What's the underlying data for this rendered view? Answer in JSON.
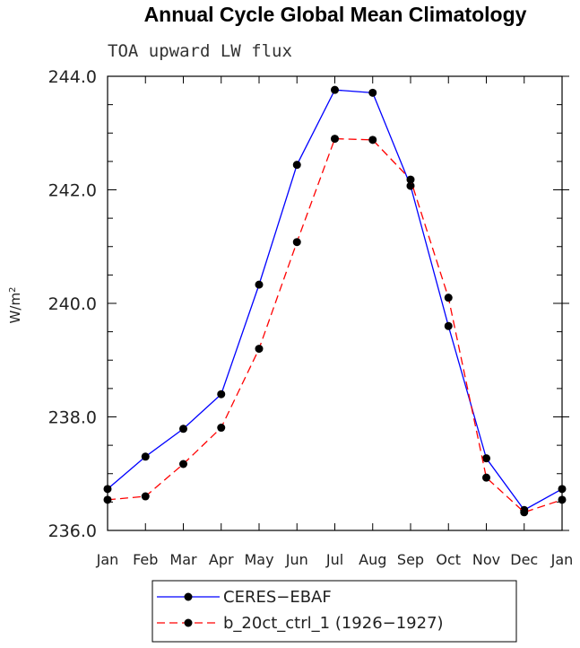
{
  "chart_data": {
    "type": "line",
    "title": "Annual Cycle Global Mean Climatology",
    "subtitle": "TOA upward LW flux",
    "ylabel": "W/m",
    "ylabel_superscript": "2",
    "xlabel": "",
    "categories": [
      "Jan",
      "Feb",
      "Mar",
      "Apr",
      "May",
      "Jun",
      "Jul",
      "Aug",
      "Sep",
      "Oct",
      "Nov",
      "Dec",
      "Jan"
    ],
    "ylim": [
      236.0,
      244.0
    ],
    "yticks": [
      "236.0",
      "238.0",
      "240.0",
      "242.0",
      "244.0"
    ],
    "grid": false,
    "legend_position": "bottom",
    "series": [
      {
        "name": "CERES−EBAF",
        "color": "#0000ff",
        "line_style": "solid",
        "marker": "filled-circle",
        "values": [
          236.73,
          237.3,
          237.79,
          238.4,
          240.33,
          242.44,
          243.76,
          243.71,
          242.07,
          239.6,
          237.27,
          236.36,
          236.73
        ]
      },
      {
        "name": "b_20ct_ctrl_1 (1926−1927)",
        "color": "#ff0000",
        "line_style": "dashed",
        "marker": "filled-circle",
        "values": [
          236.54,
          236.6,
          237.17,
          237.81,
          239.2,
          241.08,
          242.9,
          242.88,
          242.18,
          240.1,
          236.93,
          236.32,
          236.54
        ]
      }
    ]
  }
}
